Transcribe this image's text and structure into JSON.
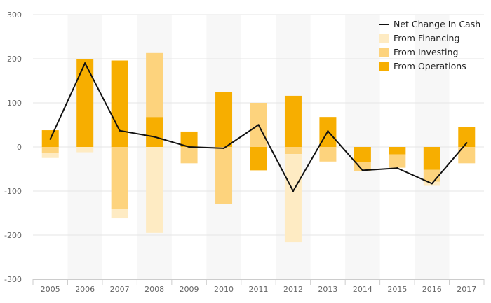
{
  "colors": {
    "background": "#ffffff",
    "plot_band": "#f7f7f7",
    "grid": "#e6e6e6",
    "axis": "#cccccc",
    "operations": "#f7ae00",
    "investing": "#fdd37d",
    "financing": "#feebc3",
    "net_line": "#111111"
  },
  "chart_data": {
    "type": "bar",
    "stacked": true,
    "categories": [
      "2005",
      "2006",
      "2007",
      "2008",
      "2009",
      "2010",
      "2011",
      "2012",
      "2013",
      "2014",
      "2015",
      "2016",
      "2017"
    ],
    "series": [
      {
        "name": "From Operations",
        "type": "bar",
        "values": [
          38,
          200,
          196,
          68,
          35,
          125,
          -53,
          116,
          68,
          -34,
          -17,
          -52,
          46
        ]
      },
      {
        "name": "From Investing",
        "type": "bar",
        "values": [
          -13,
          0,
          -140,
          145,
          -37,
          -130,
          100,
          -16,
          -33,
          -20,
          -30,
          -27,
          -37
        ]
      },
      {
        "name": "From Financing",
        "type": "bar",
        "values": [
          -12,
          -12,
          -22,
          -195,
          0,
          0,
          0,
          -200,
          0,
          0,
          0,
          -9,
          0
        ]
      },
      {
        "name": "Net Change In Cash",
        "type": "line",
        "values": [
          18,
          190,
          37,
          23,
          0,
          -3,
          50,
          -100,
          36,
          -53,
          -48,
          -83,
          9
        ]
      }
    ],
    "ylim": [
      -300,
      300
    ],
    "yticks": [
      300,
      200,
      100,
      0,
      -100,
      -200,
      -300
    ],
    "grid": true,
    "legend_position": "top-right",
    "title": "",
    "xlabel": "",
    "ylabel": ""
  }
}
